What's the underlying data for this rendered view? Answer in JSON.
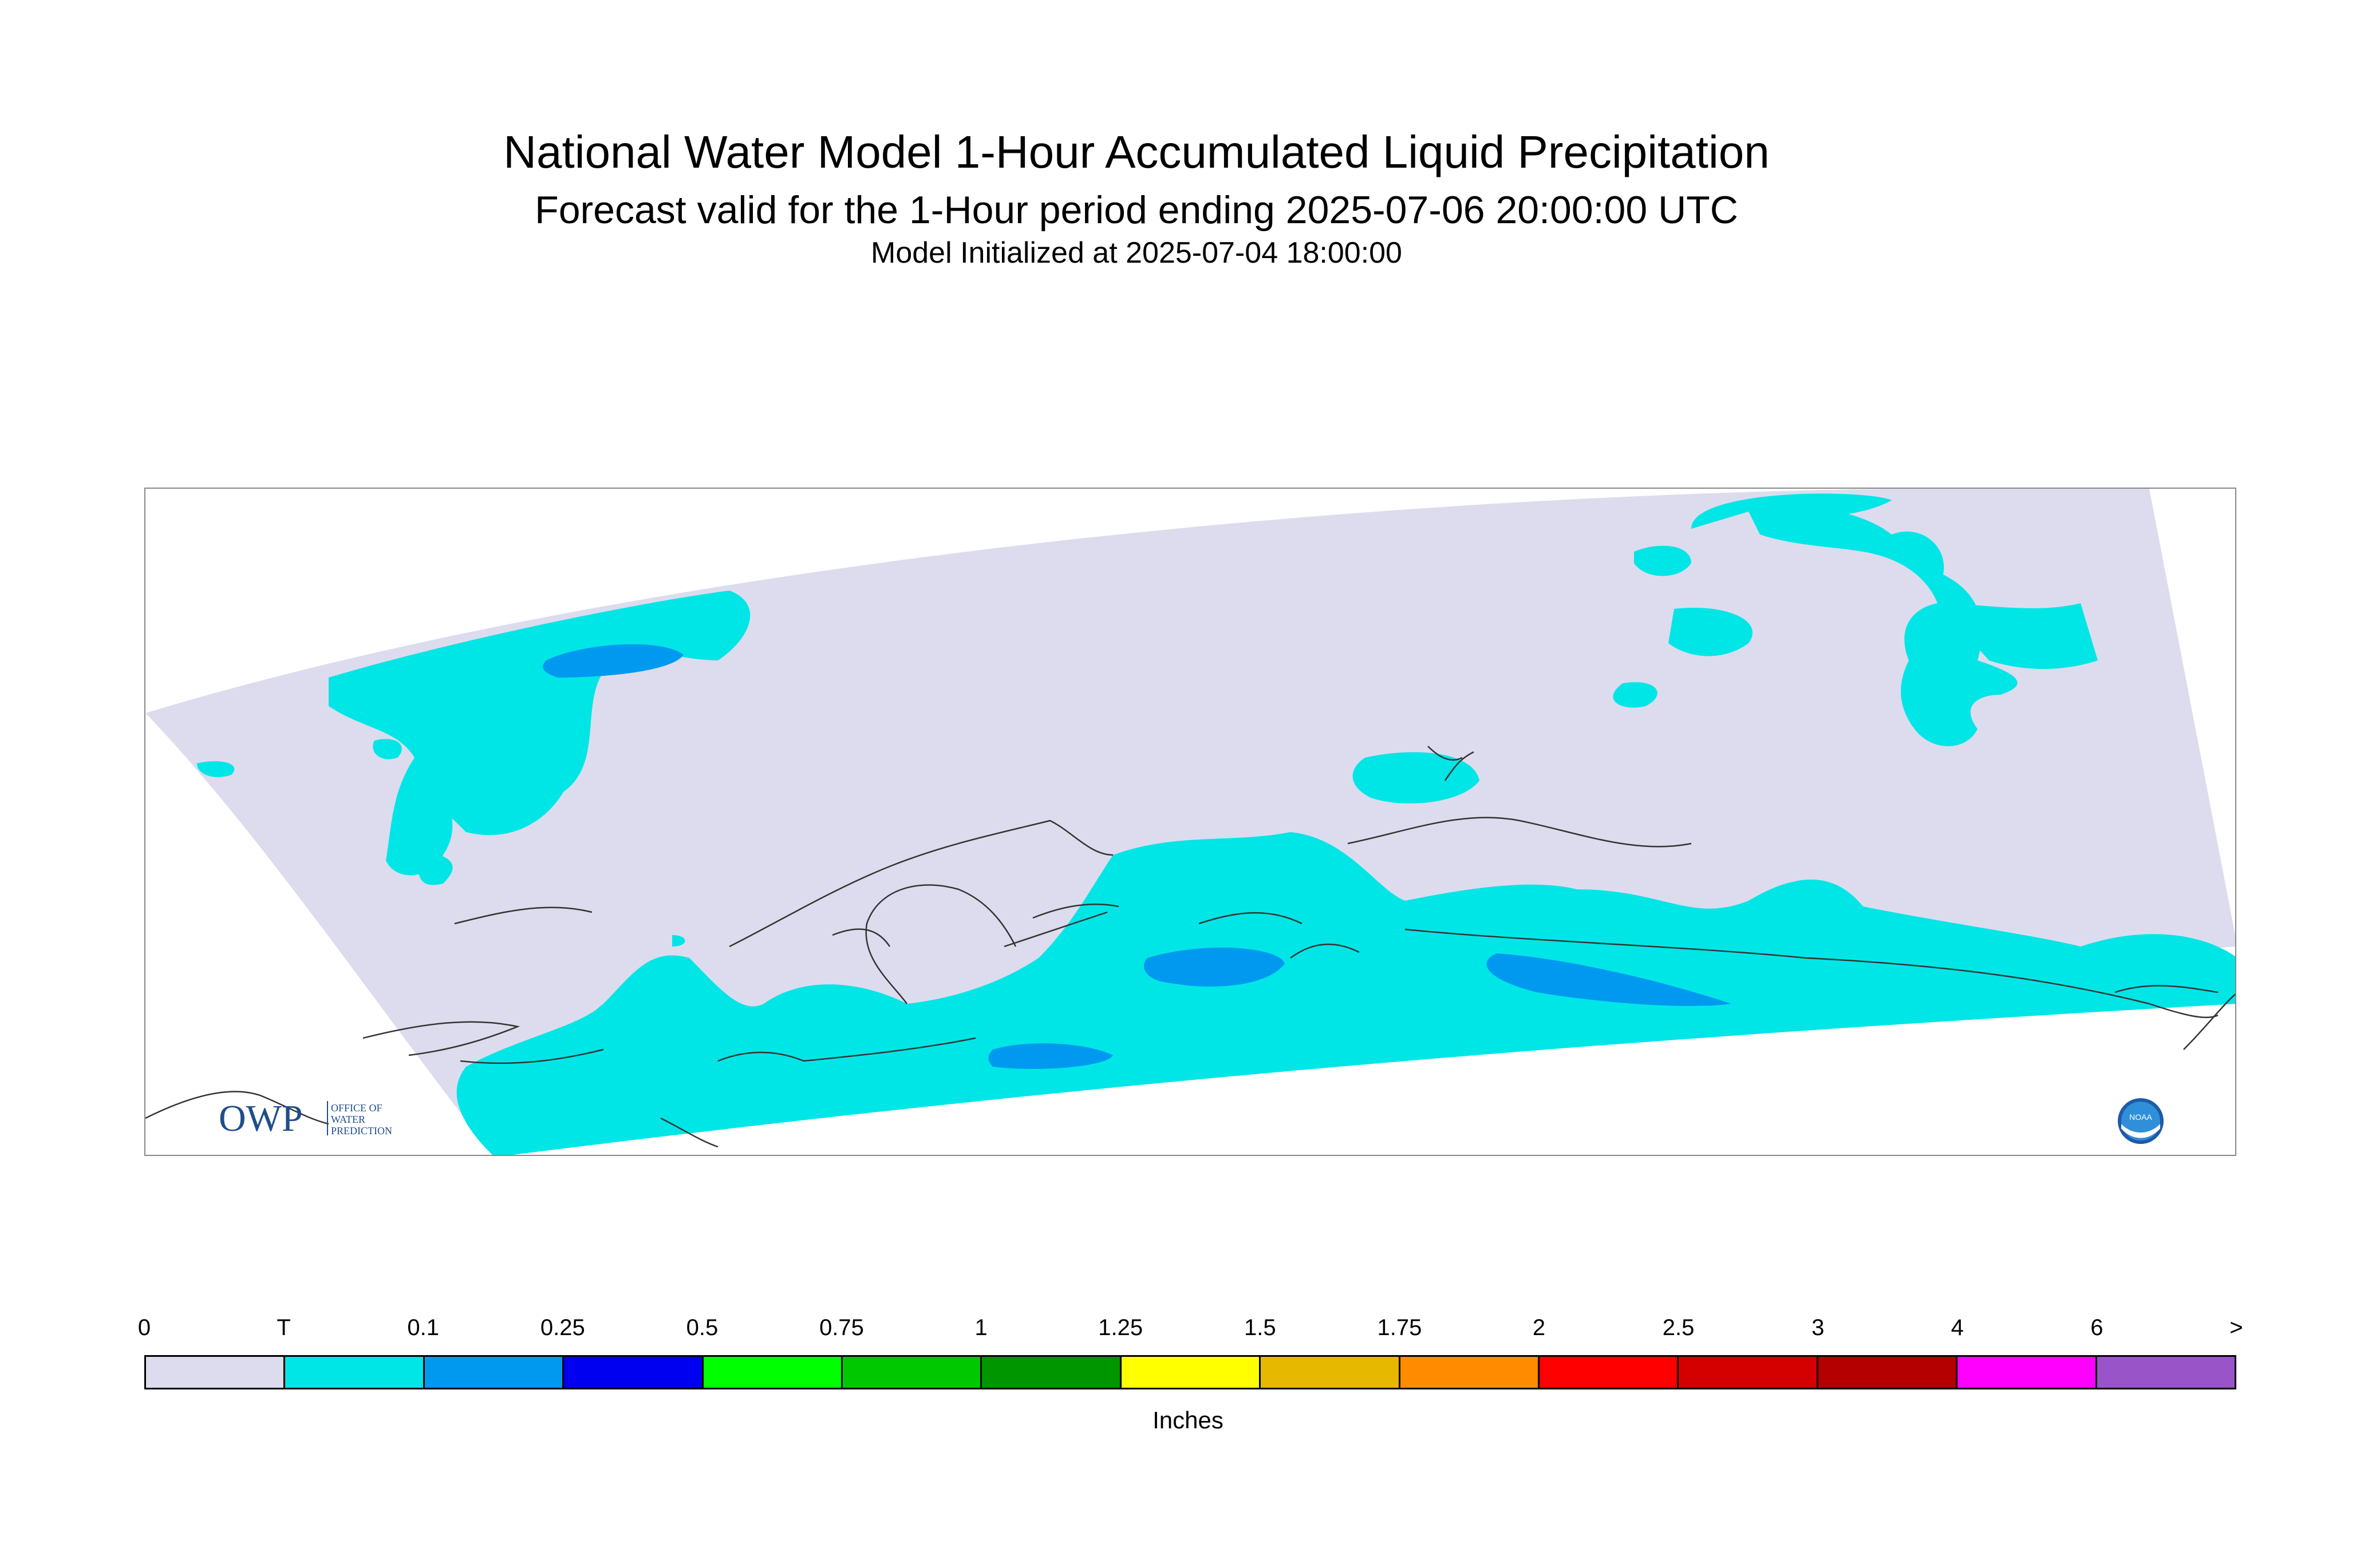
{
  "title": "National Water Model 1-Hour Accumulated Liquid Precipitation",
  "subtitle": "Forecast valid for the 1-Hour period ending 2025-07-06 20:00:00 UTC",
  "init_line": "Model Initialized at 2025-07-04 18:00:00",
  "legend": {
    "labels": [
      "0",
      "T",
      "0.1",
      "0.25",
      "0.5",
      "0.75",
      "1",
      "1.25",
      "1.5",
      "1.75",
      "2",
      "2.5",
      "3",
      "4",
      "6",
      ">"
    ],
    "colors": [
      "#dcdcee",
      "#00e6e6",
      "#0099f0",
      "#0000f0",
      "#00ff00",
      "#00c800",
      "#009600",
      "#ffff00",
      "#e6b800",
      "#ff8c00",
      "#ff0000",
      "#d40000",
      "#b40000",
      "#ff00ff",
      "#9955c8"
    ],
    "units": "Inches"
  },
  "logos": {
    "owp_text": "OWP",
    "owp_subtext": [
      "OFFICE OF",
      "WATER",
      "PREDICTION"
    ],
    "noaa_text": "NOAA"
  },
  "map_colors": {
    "domain": "#dcdcee",
    "trace": "#00e6e6",
    "light": "#0099f0",
    "coast": "#333333"
  }
}
